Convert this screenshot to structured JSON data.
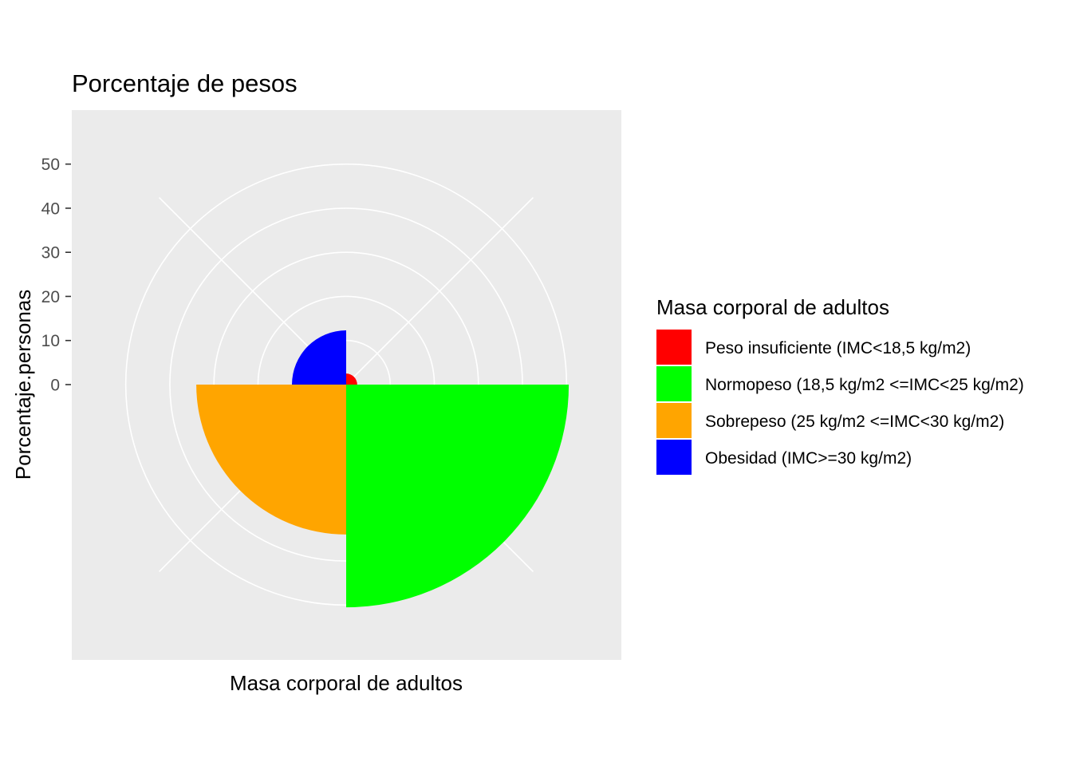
{
  "chart_data": {
    "type": "polar-bar",
    "title": "Porcentaje de pesos",
    "xlabel": "Masa corporal de adultos",
    "ylabel": "Porcentaje.personas",
    "ylim": [
      0,
      60
    ],
    "yticks": [
      0,
      10,
      20,
      30,
      40,
      50
    ],
    "categories": [
      "Peso insuficiente (IMC<18,5 kg/m2)",
      "Normopeso (18,5 kg/m2 <=IMC<25 kg/m2)",
      "Sobrepeso (25 kg/m2 <=IMC<30 kg/m2)",
      "Obesidad (IMC>=30 kg/m2)"
    ],
    "values": [
      2.5,
      50.5,
      34.0,
      12.3
    ],
    "colors": [
      "#ff0000",
      "#00ff00",
      "#ffa500",
      "#0000ff"
    ],
    "grid": true,
    "legend": {
      "title": "Masa corporal de adultos",
      "position": "right"
    }
  }
}
